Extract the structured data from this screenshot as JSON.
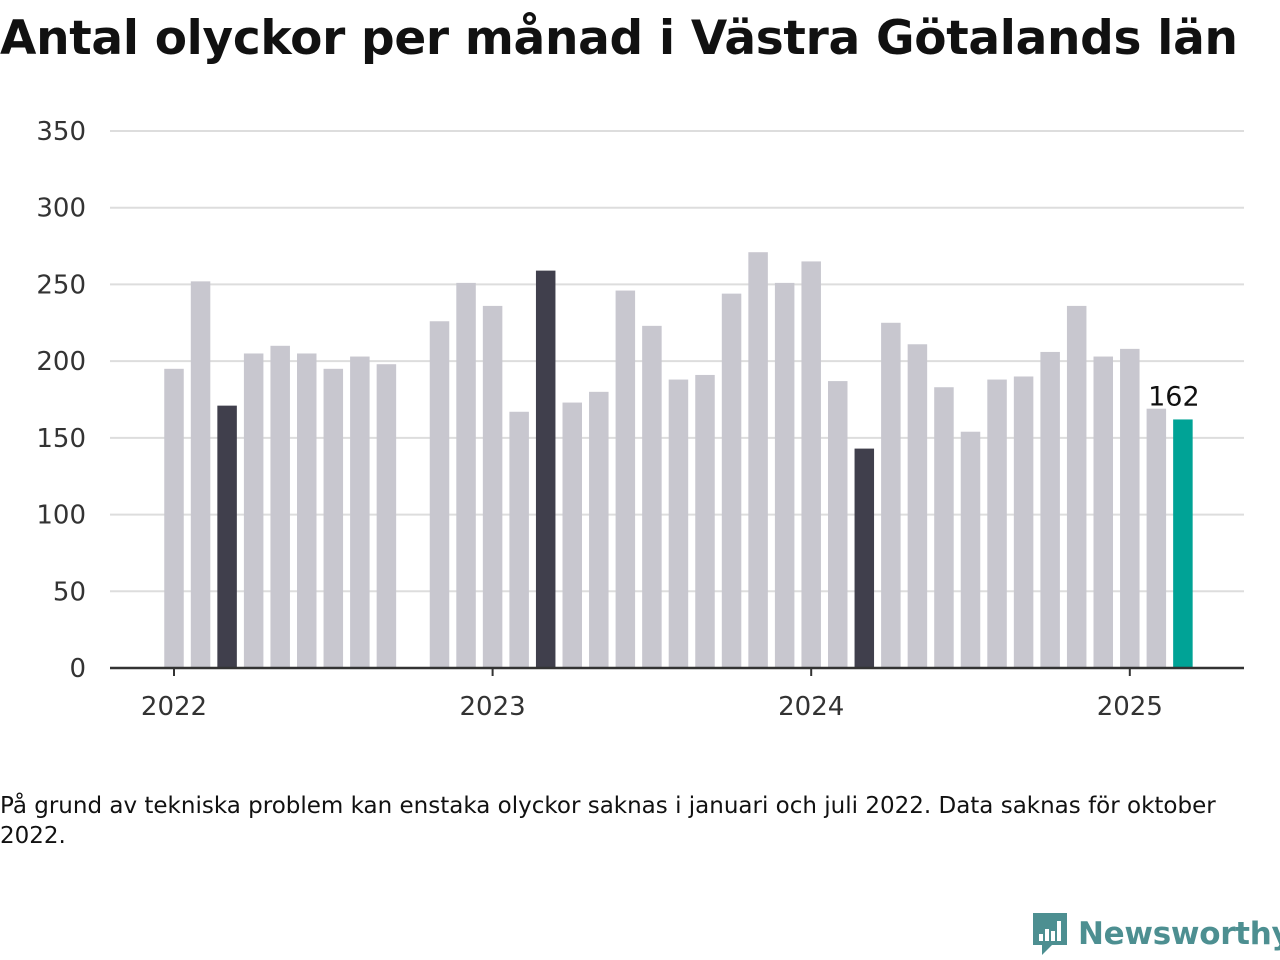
{
  "chart_data": {
    "type": "bar",
    "title": "Antal olyckor per månad i Västra Götalands län",
    "xlabel": "",
    "ylabel": "",
    "ylim": [
      0,
      350
    ],
    "yticks": [
      "0",
      "50",
      "100",
      "150",
      "200",
      "250",
      "300",
      "350"
    ],
    "xticks": [
      "2022",
      "2023",
      "2024",
      "2025"
    ],
    "grid": true,
    "categories": [
      "2022-01",
      "2022-02",
      "2022-03",
      "2022-04",
      "2022-05",
      "2022-06",
      "2022-07",
      "2022-08",
      "2022-09",
      "2022-10",
      "2022-11",
      "2022-12",
      "2023-01",
      "2023-02",
      "2023-03",
      "2023-04",
      "2023-05",
      "2023-06",
      "2023-07",
      "2023-08",
      "2023-09",
      "2023-10",
      "2023-11",
      "2023-12",
      "2024-01",
      "2024-02",
      "2024-03",
      "2024-04",
      "2024-05",
      "2024-06",
      "2024-07",
      "2024-08",
      "2024-09",
      "2024-10",
      "2024-11",
      "2024-12",
      "2025-01",
      "2025-02",
      "2025-03"
    ],
    "values": [
      195,
      252,
      171,
      205,
      210,
      205,
      195,
      203,
      198,
      null,
      226,
      251,
      236,
      167,
      259,
      173,
      180,
      246,
      223,
      188,
      191,
      244,
      271,
      251,
      265,
      187,
      143,
      225,
      211,
      183,
      154,
      188,
      190,
      206,
      236,
      203,
      208,
      169,
      162
    ],
    "highlight_months": [
      "2022-03",
      "2023-03",
      "2024-03"
    ],
    "current_month": "2025-03",
    "value_label": "162",
    "colors": {
      "bar": "#c8c7cf",
      "highlight": "#403f4c",
      "current": "#00a396",
      "grid": "#dddddd",
      "axis": "#333333"
    }
  },
  "footnote": "På grund av tekniska problem kan enstaka olyckor saknas i januari och juli 2022. Data saknas för oktober 2022.",
  "logo": {
    "text": "Newsworthy",
    "icon": "newsworthy-chat-bars-icon",
    "color": "#4d8f91"
  }
}
